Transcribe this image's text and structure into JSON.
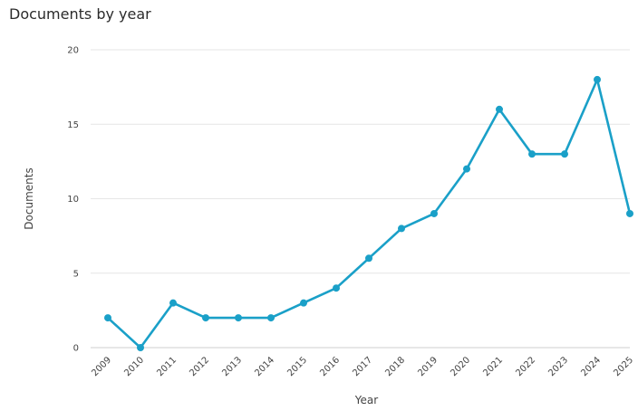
{
  "chart_data": {
    "type": "line",
    "title": "Documents by year",
    "xlabel": "Year",
    "ylabel": "Documents",
    "ylim": [
      0,
      20
    ],
    "yticks": [
      0,
      5,
      10,
      15,
      20
    ],
    "grid": true,
    "color": "#1aa0c8",
    "x": [
      "2009",
      "2010",
      "2011",
      "2012",
      "2013",
      "2014",
      "2015",
      "2016",
      "2017",
      "2018",
      "2019",
      "2020",
      "2021",
      "2022",
      "2023",
      "2024",
      "2025"
    ],
    "values": [
      2,
      0,
      3,
      2,
      2,
      2,
      3,
      4,
      6,
      8,
      9,
      12,
      16,
      13,
      13,
      18,
      9
    ]
  }
}
